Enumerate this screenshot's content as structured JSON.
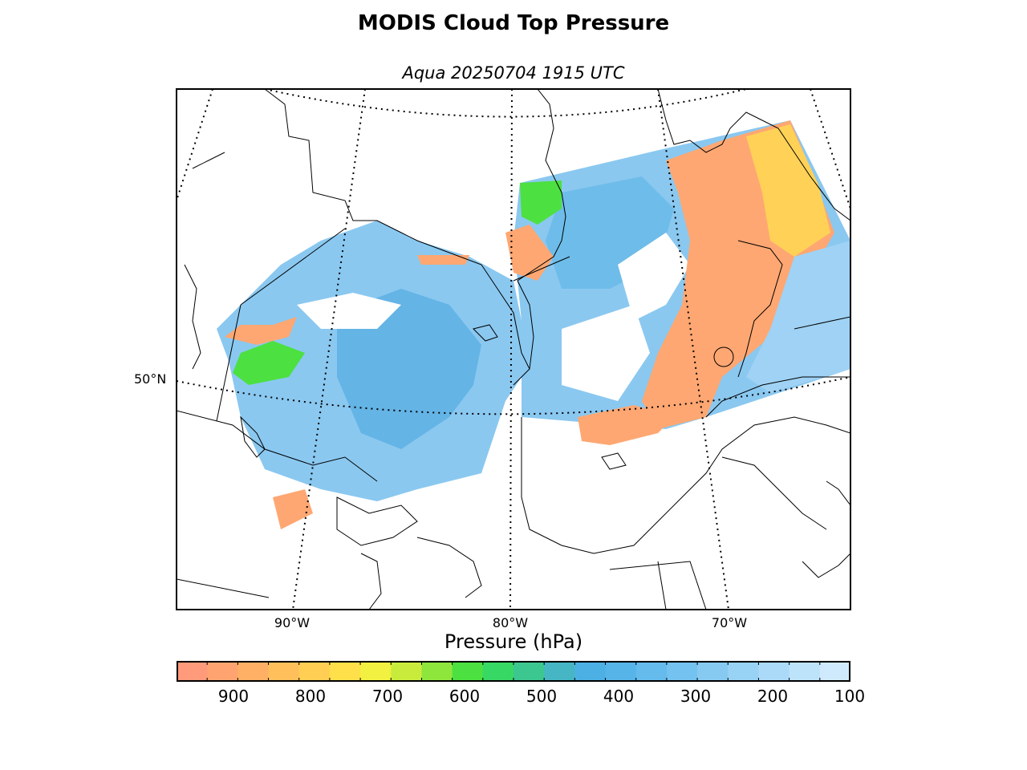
{
  "title": "MODIS Cloud Top Pressure",
  "subtitle": "Aqua 20250704 1915 UTC",
  "map": {
    "latitude_labels": [
      "50°N"
    ],
    "longitude_labels": [
      "90°W",
      "80°W",
      "70°W"
    ],
    "graticule": "dotted",
    "coastlines": true,
    "borders": true
  },
  "colorbar": {
    "label": "Pressure (hPa)",
    "ticks": [
      "900",
      "800",
      "700",
      "600",
      "500",
      "400",
      "300",
      "200",
      "100"
    ],
    "range": [
      975,
      100
    ],
    "colors": [
      "#ff9a7a",
      "#ffa470",
      "#ffb064",
      "#ffbf5a",
      "#ffce52",
      "#ffe04a",
      "#f2f040",
      "#c9ec3c",
      "#8ee63c",
      "#4ce040",
      "#38d864",
      "#3cc690",
      "#46b6c4",
      "#4cb0e4",
      "#56b4e8",
      "#64bbec",
      "#74c2ef",
      "#86caf2",
      "#98d2f5",
      "#aadaf8",
      "#bde3fa",
      "#cfeafc"
    ]
  }
}
